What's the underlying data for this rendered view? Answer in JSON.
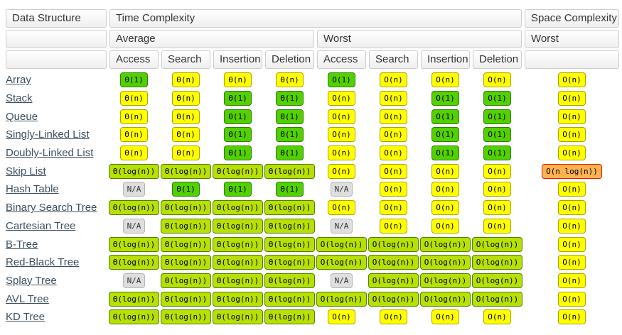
{
  "header": {
    "data_structure": "Data Structure",
    "time_complexity": "Time Complexity",
    "space_complexity": "Space Complexity",
    "average": "Average",
    "worst_time": "Worst",
    "worst_space": "Worst",
    "operations": [
      "Access",
      "Search",
      "Insertion",
      "Deletion",
      "Access",
      "Search",
      "Insertion",
      "Deletion"
    ]
  },
  "colors": {
    "exc": {
      "bg": "#53d000",
      "border": "#2e8000",
      "text": "#000000"
    },
    "good": {
      "bg": "#b8e005",
      "border": "#4c8005",
      "text": "#000000"
    },
    "fair": {
      "bg": "#ffff00",
      "border": "#aaa400",
      "text": "#000000"
    },
    "bad": {
      "bg": "#ffb350",
      "border": "#dd1e00",
      "text": "#000000"
    },
    "na": {
      "bg": "#dedede",
      "border": "#b5b5b5",
      "text": "#333333"
    }
  },
  "rows": [
    {
      "name": "Array",
      "cells": [
        {
          "text": "Θ(1)",
          "rating": "exc"
        },
        {
          "text": "Θ(n)",
          "rating": "fair"
        },
        {
          "text": "Θ(n)",
          "rating": "fair"
        },
        {
          "text": "Θ(n)",
          "rating": "fair"
        },
        {
          "text": "O(1)",
          "rating": "exc"
        },
        {
          "text": "O(n)",
          "rating": "fair"
        },
        {
          "text": "O(n)",
          "rating": "fair"
        },
        {
          "text": "O(n)",
          "rating": "fair"
        },
        {
          "text": "O(n)",
          "rating": "fair"
        }
      ]
    },
    {
      "name": "Stack",
      "cells": [
        {
          "text": "Θ(n)",
          "rating": "fair"
        },
        {
          "text": "Θ(n)",
          "rating": "fair"
        },
        {
          "text": "Θ(1)",
          "rating": "exc"
        },
        {
          "text": "Θ(1)",
          "rating": "exc"
        },
        {
          "text": "O(n)",
          "rating": "fair"
        },
        {
          "text": "O(n)",
          "rating": "fair"
        },
        {
          "text": "O(1)",
          "rating": "exc"
        },
        {
          "text": "O(1)",
          "rating": "exc"
        },
        {
          "text": "O(n)",
          "rating": "fair"
        }
      ]
    },
    {
      "name": "Queue",
      "cells": [
        {
          "text": "Θ(n)",
          "rating": "fair"
        },
        {
          "text": "Θ(n)",
          "rating": "fair"
        },
        {
          "text": "Θ(1)",
          "rating": "exc"
        },
        {
          "text": "Θ(1)",
          "rating": "exc"
        },
        {
          "text": "O(n)",
          "rating": "fair"
        },
        {
          "text": "O(n)",
          "rating": "fair"
        },
        {
          "text": "O(1)",
          "rating": "exc"
        },
        {
          "text": "O(1)",
          "rating": "exc"
        },
        {
          "text": "O(n)",
          "rating": "fair"
        }
      ]
    },
    {
      "name": "Singly-Linked List",
      "cells": [
        {
          "text": "Θ(n)",
          "rating": "fair"
        },
        {
          "text": "Θ(n)",
          "rating": "fair"
        },
        {
          "text": "Θ(1)",
          "rating": "exc"
        },
        {
          "text": "Θ(1)",
          "rating": "exc"
        },
        {
          "text": "O(n)",
          "rating": "fair"
        },
        {
          "text": "O(n)",
          "rating": "fair"
        },
        {
          "text": "O(1)",
          "rating": "exc"
        },
        {
          "text": "O(1)",
          "rating": "exc"
        },
        {
          "text": "O(n)",
          "rating": "fair"
        }
      ]
    },
    {
      "name": "Doubly-Linked List",
      "cells": [
        {
          "text": "Θ(n)",
          "rating": "fair"
        },
        {
          "text": "Θ(n)",
          "rating": "fair"
        },
        {
          "text": "Θ(1)",
          "rating": "exc"
        },
        {
          "text": "Θ(1)",
          "rating": "exc"
        },
        {
          "text": "O(n)",
          "rating": "fair"
        },
        {
          "text": "O(n)",
          "rating": "fair"
        },
        {
          "text": "O(1)",
          "rating": "exc"
        },
        {
          "text": "O(1)",
          "rating": "exc"
        },
        {
          "text": "O(n)",
          "rating": "fair"
        }
      ]
    },
    {
      "name": "Skip List",
      "cells": [
        {
          "text": "Θ(log(n))",
          "rating": "good"
        },
        {
          "text": "Θ(log(n))",
          "rating": "good"
        },
        {
          "text": "Θ(log(n))",
          "rating": "good"
        },
        {
          "text": "Θ(log(n))",
          "rating": "good"
        },
        {
          "text": "O(n)",
          "rating": "fair"
        },
        {
          "text": "O(n)",
          "rating": "fair"
        },
        {
          "text": "O(n)",
          "rating": "fair"
        },
        {
          "text": "O(n)",
          "rating": "fair"
        },
        {
          "text": "O(n log(n))",
          "rating": "bad"
        }
      ]
    },
    {
      "name": "Hash Table",
      "cells": [
        {
          "text": "N/A",
          "rating": "na"
        },
        {
          "text": "Θ(1)",
          "rating": "exc"
        },
        {
          "text": "Θ(1)",
          "rating": "exc"
        },
        {
          "text": "Θ(1)",
          "rating": "exc"
        },
        {
          "text": "N/A",
          "rating": "na"
        },
        {
          "text": "O(n)",
          "rating": "fair"
        },
        {
          "text": "O(n)",
          "rating": "fair"
        },
        {
          "text": "O(n)",
          "rating": "fair"
        },
        {
          "text": "O(n)",
          "rating": "fair"
        }
      ]
    },
    {
      "name": "Binary Search Tree",
      "cells": [
        {
          "text": "Θ(log(n))",
          "rating": "good"
        },
        {
          "text": "Θ(log(n))",
          "rating": "good"
        },
        {
          "text": "Θ(log(n))",
          "rating": "good"
        },
        {
          "text": "Θ(log(n))",
          "rating": "good"
        },
        {
          "text": "O(n)",
          "rating": "fair"
        },
        {
          "text": "O(n)",
          "rating": "fair"
        },
        {
          "text": "O(n)",
          "rating": "fair"
        },
        {
          "text": "O(n)",
          "rating": "fair"
        },
        {
          "text": "O(n)",
          "rating": "fair"
        }
      ]
    },
    {
      "name": "Cartesian Tree",
      "cells": [
        {
          "text": "N/A",
          "rating": "na"
        },
        {
          "text": "Θ(log(n))",
          "rating": "good"
        },
        {
          "text": "Θ(log(n))",
          "rating": "good"
        },
        {
          "text": "Θ(log(n))",
          "rating": "good"
        },
        {
          "text": "N/A",
          "rating": "na"
        },
        {
          "text": "O(n)",
          "rating": "fair"
        },
        {
          "text": "O(n)",
          "rating": "fair"
        },
        {
          "text": "O(n)",
          "rating": "fair"
        },
        {
          "text": "O(n)",
          "rating": "fair"
        }
      ]
    },
    {
      "name": "B-Tree",
      "cells": [
        {
          "text": "Θ(log(n))",
          "rating": "good"
        },
        {
          "text": "Θ(log(n))",
          "rating": "good"
        },
        {
          "text": "Θ(log(n))",
          "rating": "good"
        },
        {
          "text": "Θ(log(n))",
          "rating": "good"
        },
        {
          "text": "O(log(n))",
          "rating": "good"
        },
        {
          "text": "O(log(n))",
          "rating": "good"
        },
        {
          "text": "O(log(n))",
          "rating": "good"
        },
        {
          "text": "O(log(n))",
          "rating": "good"
        },
        {
          "text": "O(n)",
          "rating": "fair"
        }
      ]
    },
    {
      "name": "Red-Black Tree",
      "cells": [
        {
          "text": "Θ(log(n))",
          "rating": "good"
        },
        {
          "text": "Θ(log(n))",
          "rating": "good"
        },
        {
          "text": "Θ(log(n))",
          "rating": "good"
        },
        {
          "text": "Θ(log(n))",
          "rating": "good"
        },
        {
          "text": "O(log(n))",
          "rating": "good"
        },
        {
          "text": "O(log(n))",
          "rating": "good"
        },
        {
          "text": "O(log(n))",
          "rating": "good"
        },
        {
          "text": "O(log(n))",
          "rating": "good"
        },
        {
          "text": "O(n)",
          "rating": "fair"
        }
      ]
    },
    {
      "name": "Splay Tree",
      "cells": [
        {
          "text": "N/A",
          "rating": "na"
        },
        {
          "text": "Θ(log(n))",
          "rating": "good"
        },
        {
          "text": "Θ(log(n))",
          "rating": "good"
        },
        {
          "text": "Θ(log(n))",
          "rating": "good"
        },
        {
          "text": "N/A",
          "rating": "na"
        },
        {
          "text": "O(log(n))",
          "rating": "good"
        },
        {
          "text": "O(log(n))",
          "rating": "good"
        },
        {
          "text": "O(log(n))",
          "rating": "good"
        },
        {
          "text": "O(n)",
          "rating": "fair"
        }
      ]
    },
    {
      "name": "AVL Tree",
      "cells": [
        {
          "text": "Θ(log(n))",
          "rating": "good"
        },
        {
          "text": "Θ(log(n))",
          "rating": "good"
        },
        {
          "text": "Θ(log(n))",
          "rating": "good"
        },
        {
          "text": "Θ(log(n))",
          "rating": "good"
        },
        {
          "text": "O(log(n))",
          "rating": "good"
        },
        {
          "text": "O(log(n))",
          "rating": "good"
        },
        {
          "text": "O(log(n))",
          "rating": "good"
        },
        {
          "text": "O(log(n))",
          "rating": "good"
        },
        {
          "text": "O(n)",
          "rating": "fair"
        }
      ]
    },
    {
      "name": "KD Tree",
      "cells": [
        {
          "text": "Θ(log(n))",
          "rating": "good"
        },
        {
          "text": "Θ(log(n))",
          "rating": "good"
        },
        {
          "text": "Θ(log(n))",
          "rating": "good"
        },
        {
          "text": "Θ(log(n))",
          "rating": "good"
        },
        {
          "text": "O(n)",
          "rating": "fair"
        },
        {
          "text": "O(n)",
          "rating": "fair"
        },
        {
          "text": "O(n)",
          "rating": "fair"
        },
        {
          "text": "O(n)",
          "rating": "fair"
        },
        {
          "text": "O(n)",
          "rating": "fair"
        }
      ]
    }
  ]
}
